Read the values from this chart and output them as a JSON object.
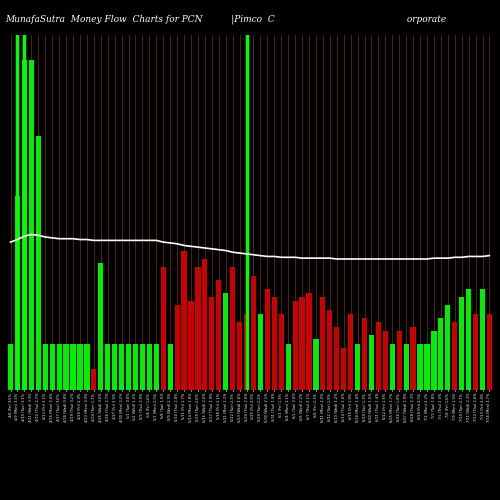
{
  "title": "MunafaSutra  Money Flow  Charts for PCN          |Pimco  C                                              orporate",
  "background_color": "#000000",
  "bar_colors_pattern": [
    "green",
    "green",
    "green",
    "green",
    "green",
    "green",
    "green",
    "green",
    "green",
    "green",
    "green",
    "green",
    "red",
    "green",
    "green",
    "green",
    "green",
    "green",
    "green",
    "green",
    "green",
    "green",
    "red",
    "green",
    "red",
    "red",
    "red",
    "red",
    "red",
    "red",
    "red",
    "green",
    "red",
    "red",
    "red",
    "red",
    "green",
    "red",
    "red",
    "red",
    "green",
    "red",
    "red",
    "red",
    "green",
    "red",
    "red",
    "red",
    "red",
    "red",
    "green",
    "red",
    "green",
    "red",
    "red",
    "green",
    "red",
    "green",
    "red",
    "green",
    "green",
    "green",
    "green",
    "green",
    "red",
    "green",
    "green",
    "red",
    "green",
    "red"
  ],
  "bar_heights": [
    55,
    230,
    390,
    390,
    300,
    55,
    55,
    55,
    55,
    55,
    55,
    55,
    25,
    150,
    55,
    55,
    55,
    55,
    55,
    55,
    55,
    55,
    145,
    55,
    100,
    165,
    105,
    145,
    155,
    110,
    130,
    115,
    145,
    80,
    90,
    135,
    90,
    120,
    110,
    90,
    55,
    105,
    110,
    115,
    60,
    110,
    95,
    75,
    50,
    90,
    55,
    85,
    65,
    80,
    70,
    55,
    70,
    55,
    75,
    55,
    55,
    70,
    85,
    100,
    80,
    110,
    120,
    90,
    120,
    90
  ],
  "moving_avg": [
    175,
    178,
    182,
    184,
    183,
    181,
    180,
    179,
    179,
    179,
    178,
    178,
    177,
    177,
    177,
    177,
    177,
    177,
    177,
    177,
    177,
    177,
    175,
    174,
    173,
    171,
    170,
    169,
    168,
    167,
    166,
    165,
    163,
    162,
    161,
    160,
    159,
    158,
    158,
    157,
    157,
    157,
    156,
    156,
    156,
    156,
    156,
    155,
    155,
    155,
    155,
    155,
    155,
    155,
    155,
    155,
    155,
    155,
    155,
    155,
    155,
    156,
    156,
    156,
    157,
    157,
    158,
    158,
    158,
    159
  ],
  "num_bars": 70,
  "ylim_max": 420,
  "title_color": "#ffffff",
  "title_fontsize": 6.5,
  "ma_color": "#ffffff",
  "ma_linewidth": 1.2,
  "green_color": "#00ee00",
  "red_color": "#cc0000",
  "bright_green_color": "#00ff00",
  "bright_green_full_lines": [
    1,
    2,
    34
  ],
  "orange_grid_color": "#8B4513",
  "bar_width": 0.75
}
